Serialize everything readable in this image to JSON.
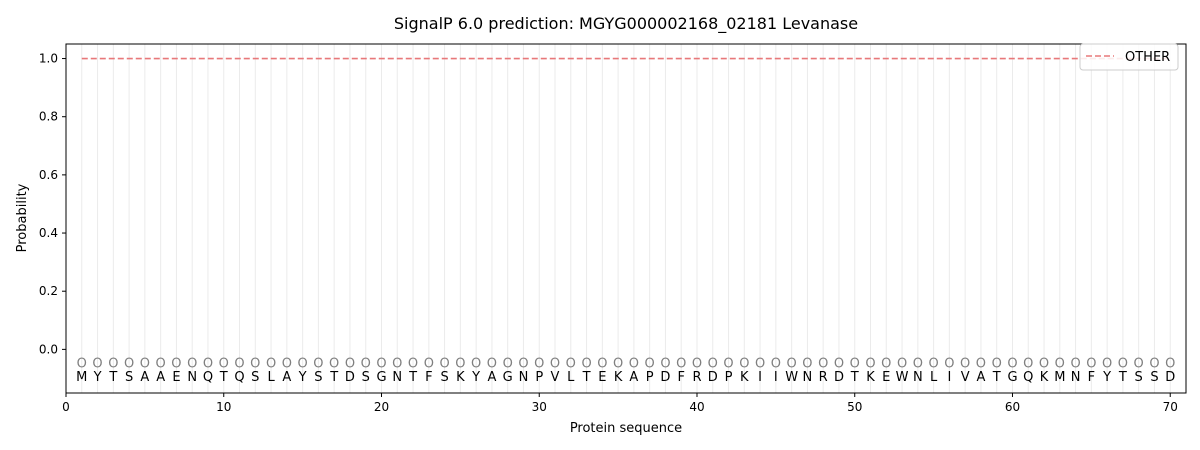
{
  "chart_data": {
    "type": "line",
    "title": "SignalP 6.0 prediction: MGYG000002168_02181 Levanase",
    "xlabel": "Protein sequence",
    "ylabel": "Probability",
    "xlim": [
      0,
      71
    ],
    "ylim": [
      -0.15,
      1.05
    ],
    "xticks": [
      0,
      10,
      20,
      30,
      40,
      50,
      60,
      70
    ],
    "yticks": [
      0.0,
      0.2,
      0.4,
      0.6,
      0.8,
      1.0
    ],
    "sequence": [
      "M",
      "Y",
      "T",
      "S",
      "A",
      "A",
      "E",
      "N",
      "Q",
      "T",
      "Q",
      "S",
      "L",
      "A",
      "Y",
      "S",
      "T",
      "D",
      "S",
      "G",
      "N",
      "T",
      "F",
      "S",
      "K",
      "Y",
      "A",
      "G",
      "N",
      "P",
      "V",
      "L",
      "T",
      "E",
      "K",
      "A",
      "P",
      "D",
      "F",
      "R",
      "D",
      "P",
      "K",
      "I",
      "I",
      "W",
      "N",
      "R",
      "D",
      "T",
      "K",
      "E",
      "W",
      "N",
      "L",
      "I",
      "V",
      "A",
      "T",
      "G",
      "Q",
      "K",
      "M",
      "N",
      "F",
      "Y",
      "T",
      "S",
      "S",
      "D"
    ],
    "predicted_label": "O",
    "label_marker_y": -0.045,
    "series": [
      {
        "name": "OTHER",
        "color": "#e8787a",
        "style": "dashed",
        "x_start": 1,
        "x_end": 70,
        "value": 1.0
      }
    ],
    "legend": "top-right",
    "grid": "vertical per residue",
    "colors": {
      "grid": "#ebebeb",
      "marker": "#7f7f7f",
      "axis": "#000000"
    }
  }
}
